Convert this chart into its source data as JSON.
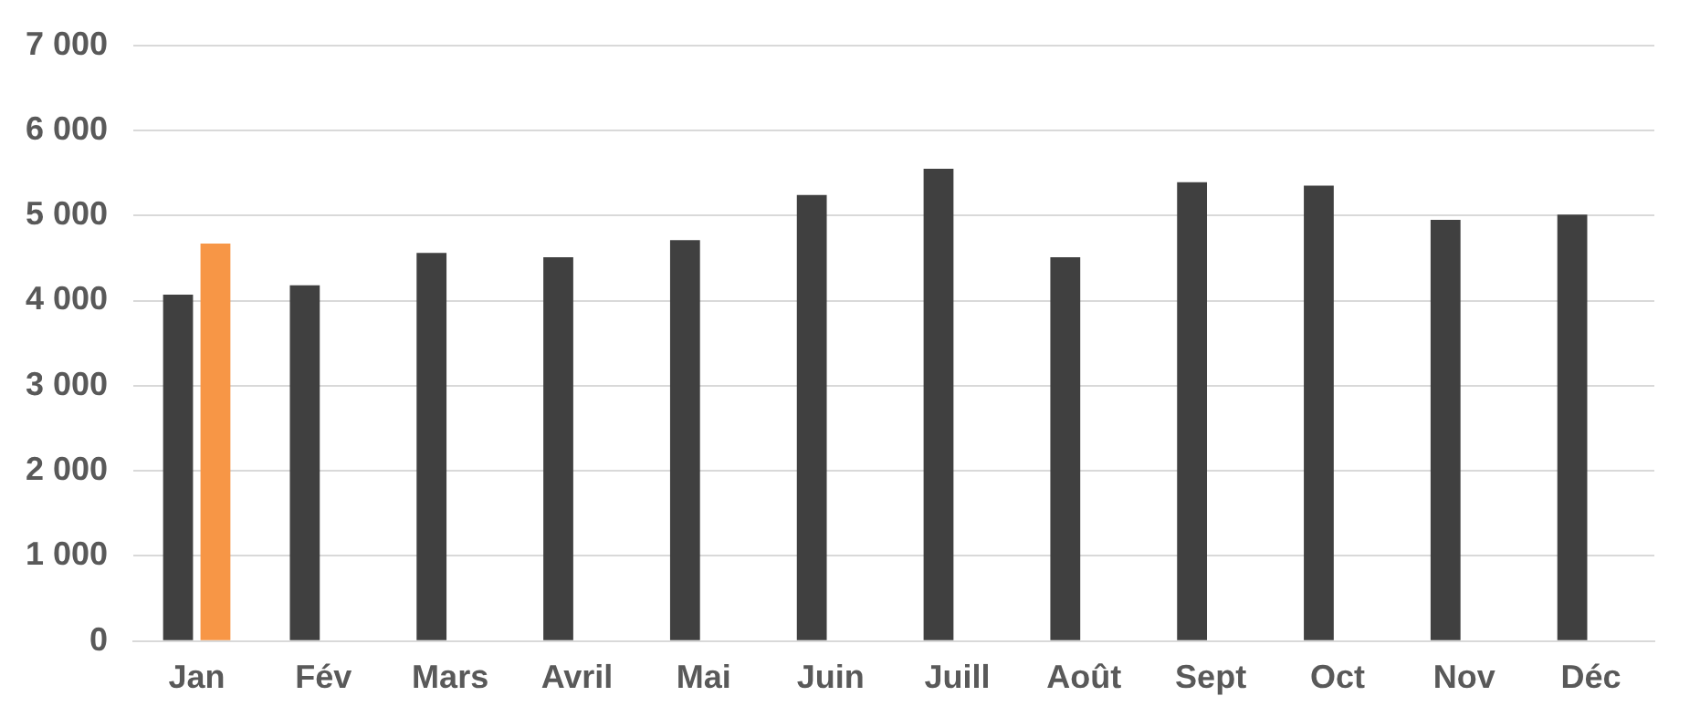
{
  "chart_data": {
    "type": "bar",
    "categories": [
      "Jan",
      "Fév",
      "Mars",
      "Avril",
      "Mai",
      "Juin",
      "Juill",
      "Août",
      "Sept",
      "Oct",
      "Nov",
      "Déc"
    ],
    "series": [
      {
        "color": "#404040",
        "values": [
          4070,
          4180,
          4560,
          4510,
          4710,
          5240,
          5550,
          4510,
          5390,
          5350,
          4950,
          5010
        ]
      },
      {
        "color": "#f79646",
        "values": [
          4670,
          null,
          null,
          null,
          null,
          null,
          null,
          null,
          null,
          null,
          null,
          null
        ]
      }
    ],
    "ylim": [
      0,
      7000
    ],
    "yticks": [
      {
        "value": 0,
        "label": "0"
      },
      {
        "value": 1000,
        "label": "1 000"
      },
      {
        "value": 2000,
        "label": "2 000"
      },
      {
        "value": 3000,
        "label": "3 000"
      },
      {
        "value": 4000,
        "label": "4 000"
      },
      {
        "value": 5000,
        "label": "5 000"
      },
      {
        "value": 6000,
        "label": "6 000"
      },
      {
        "value": 7000,
        "label": "7 000"
      }
    ],
    "grid": "y",
    "legend": false
  }
}
